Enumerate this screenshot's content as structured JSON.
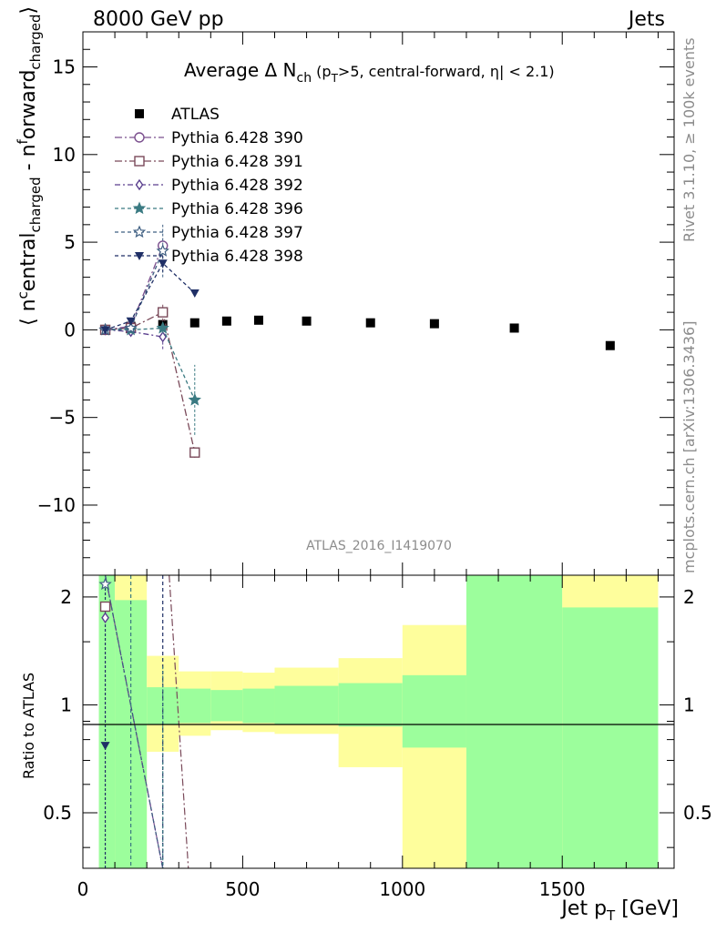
{
  "header": {
    "left": "8000 GeV pp",
    "right": "Jets"
  },
  "side_text": {
    "top": "Rivet 3.1.10, ≥ 100k events",
    "bottom": "mcplots.cern.ch [arXiv:1306.3436]"
  },
  "watermark": "ATLAS_2016_I1419070",
  "main_title": {
    "prefix": "Average Δ N",
    "sub": "ch",
    "small_a": " (p",
    "small_sub": "T",
    "small_b": ">5, central-forward, ",
    "eta": "η",
    "small_c": "| < 2.1)"
  },
  "colors": {
    "data": "#000000",
    "p390": "#7b4f8e",
    "p391": "#7a4a5a",
    "p392": "#5a3f8e",
    "p396": "#3a7a82",
    "p397": "#3f5f82",
    "p398": "#1f2f66",
    "band_green": "#9cfe9c",
    "band_yellow": "#fefe9c"
  },
  "chart_data": [
    {
      "type": "scatter",
      "panel": "main",
      "xlabel": "",
      "ylabel_parts": {
        "open": "⟨ n",
        "sup1": "c",
        "mid1": "entral",
        "sub1": "charged",
        "mid2": " - n",
        "sup2": "f",
        "mid3": "orward",
        "sub2": "charged",
        "close": "⟩"
      },
      "xlim": [
        0,
        1850
      ],
      "ylim": [
        -14,
        17
      ],
      "x_ticks": [
        0,
        500,
        1000,
        1500
      ],
      "y_ticks": [
        -10,
        -5,
        0,
        5,
        10,
        15
      ],
      "y_tick_labels": [
        "−10",
        "−5",
        "0",
        "5",
        "10",
        "15"
      ],
      "legend_position": "upper-left",
      "series": [
        {
          "name": "ATLAS",
          "key": "data",
          "marker": "square-filled",
          "x": [
            70,
            150,
            250,
            350,
            450,
            550,
            700,
            900,
            1100,
            1350,
            1650
          ],
          "y": [
            0.0,
            0.2,
            0.3,
            0.4,
            0.5,
            0.55,
            0.5,
            0.4,
            0.35,
            0.1,
            -0.9
          ]
        },
        {
          "name": "Pythia 6.428 390",
          "key": "p390",
          "marker": "circle-open",
          "dash": "8,3,2,3",
          "x": [
            70,
            150,
            250
          ],
          "y": [
            0.0,
            0.2,
            4.8
          ],
          "yerr": [
            0.05,
            0.1,
            0.4
          ]
        },
        {
          "name": "Pythia 6.428 391",
          "key": "p391",
          "marker": "square-open",
          "dash": "8,3,2,3",
          "x": [
            70,
            150,
            250,
            350
          ],
          "y": [
            0.0,
            0.1,
            1.0,
            -7.0
          ],
          "yerr": [
            0.05,
            0.1,
            0.5,
            0.3
          ]
        },
        {
          "name": "Pythia 6.428 392",
          "key": "p392",
          "marker": "diamond-open",
          "dash": "6,3,2,3",
          "x": [
            70,
            150,
            250
          ],
          "y": [
            0.0,
            -0.1,
            -0.4
          ],
          "yerr": [
            0.05,
            0.1,
            0.7
          ]
        },
        {
          "name": "Pythia 6.428 396",
          "key": "p396",
          "marker": "star-filled",
          "dash": "4,3",
          "x": [
            70,
            150,
            250,
            350
          ],
          "y": [
            0.0,
            0.0,
            0.1,
            -4.0
          ],
          "yerr": [
            0.05,
            0.1,
            0.3,
            2.0
          ]
        },
        {
          "name": "Pythia 6.428 397",
          "key": "p397",
          "marker": "star-open",
          "dash": "4,3",
          "x": [
            70,
            150,
            250
          ],
          "y": [
            0.0,
            0.1,
            4.5
          ],
          "yerr": [
            0.05,
            0.1,
            1.5
          ]
        },
        {
          "name": "Pythia 6.428 398",
          "key": "p398",
          "marker": "triangle-down-filled",
          "dash": "4,3",
          "x": [
            70,
            150,
            250,
            350
          ],
          "y": [
            0.0,
            0.5,
            3.8,
            2.1
          ],
          "yerr": [
            0.05,
            0.1,
            0.5,
            0.2
          ]
        }
      ]
    },
    {
      "type": "scatter",
      "panel": "ratio",
      "ylabel": "Ratio to ATLAS",
      "xlabel_parts": {
        "main": "Jet p",
        "sub": "T",
        "unit": " [GeV]"
      },
      "xlim": [
        0,
        1850
      ],
      "ylim": [
        0.35,
        2.3
      ],
      "x_ticks": [
        0,
        500,
        1000,
        1500
      ],
      "y_ticks": [
        0.5,
        1,
        2
      ],
      "y_tick_labels": [
        "0.5",
        "1",
        "2"
      ],
      "reference_line": 1,
      "bands": [
        {
          "x0": 50,
          "x1": 100,
          "g_lo": 0.35,
          "g_hi": 2.3,
          "y_lo": 0.35,
          "y_hi": 2.3
        },
        {
          "x0": 100,
          "x1": 200,
          "g_lo": 0.35,
          "g_hi": 1.96,
          "y_lo": 0.35,
          "y_hi": 2.3
        },
        {
          "x0": 200,
          "x1": 300,
          "g_lo": 0.88,
          "g_hi": 1.12,
          "y_lo": 0.74,
          "y_hi": 1.37
        },
        {
          "x0": 300,
          "x1": 400,
          "g_lo": 0.89,
          "g_hi": 1.11,
          "y_lo": 0.82,
          "y_hi": 1.24
        },
        {
          "x0": 400,
          "x1": 500,
          "g_lo": 0.9,
          "g_hi": 1.1,
          "y_lo": 0.85,
          "y_hi": 1.24
        },
        {
          "x0": 500,
          "x1": 600,
          "g_lo": 0.89,
          "g_hi": 1.11,
          "y_lo": 0.84,
          "y_hi": 1.23
        },
        {
          "x0": 600,
          "x1": 800,
          "g_lo": 0.88,
          "g_hi": 1.13,
          "y_lo": 0.83,
          "y_hi": 1.27
        },
        {
          "x0": 800,
          "x1": 1000,
          "g_lo": 0.87,
          "g_hi": 1.15,
          "y_lo": 0.67,
          "y_hi": 1.35
        },
        {
          "x0": 1000,
          "x1": 1200,
          "g_lo": 0.76,
          "g_hi": 1.21,
          "y_lo": 0.35,
          "y_hi": 1.67
        },
        {
          "x0": 1200,
          "x1": 1500,
          "g_lo": 0.35,
          "g_hi": 2.3,
          "y_lo": 0.35,
          "y_hi": 2.3
        },
        {
          "x0": 1500,
          "x1": 1800,
          "g_lo": 0.35,
          "g_hi": 1.87,
          "y_lo": 0.35,
          "y_hi": 2.3
        }
      ],
      "series": [
        {
          "key": "p397",
          "marker": "star-open",
          "x": [
            70
          ],
          "y": [
            2.17
          ]
        },
        {
          "key": "p391",
          "marker": "square-open",
          "x": [
            70
          ],
          "y": [
            1.88
          ]
        },
        {
          "key": "p392",
          "marker": "diamond-open",
          "x": [
            70
          ],
          "y": [
            1.75
          ]
        },
        {
          "key": "p398",
          "marker": "triangle-down-filled",
          "x": [
            70
          ],
          "y": [
            0.77
          ]
        }
      ]
    }
  ]
}
